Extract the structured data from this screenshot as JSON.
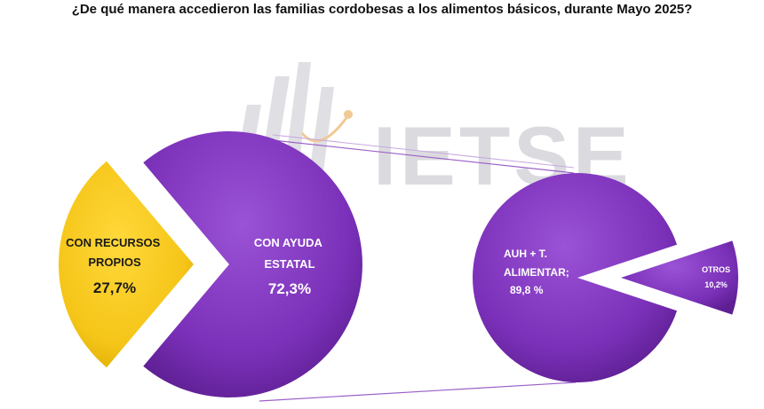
{
  "title": "¿De qué manera accedieron las familias cordobesas a los alimentos básicos, durante Mayo 2025?",
  "watermark": {
    "text": "IETSE",
    "color": "#d8d8dc"
  },
  "chart_data": [
    {
      "type": "pie",
      "slices": [
        {
          "label_lines": [
            "CON RECURSOS",
            "PROPIOS"
          ],
          "value_label": "27,7%",
          "value": 27.7,
          "color": "#f5c518"
        },
        {
          "label_lines": [
            "CON  AYUDA",
            "ESTATAL"
          ],
          "value_label": "72,3%",
          "value": 72.3,
          "color": "#7a30b8"
        }
      ]
    },
    {
      "type": "pie",
      "slices": [
        {
          "label_lines": [
            "AUH + T.",
            "ALIMENTAR;"
          ],
          "value_label": "89,8 %",
          "value": 89.8,
          "color": "#7a30b8"
        },
        {
          "label_lines": [
            "OTROS"
          ],
          "value_label": "10,2%",
          "value": 10.2,
          "color": "#7a30b8"
        }
      ]
    }
  ]
}
